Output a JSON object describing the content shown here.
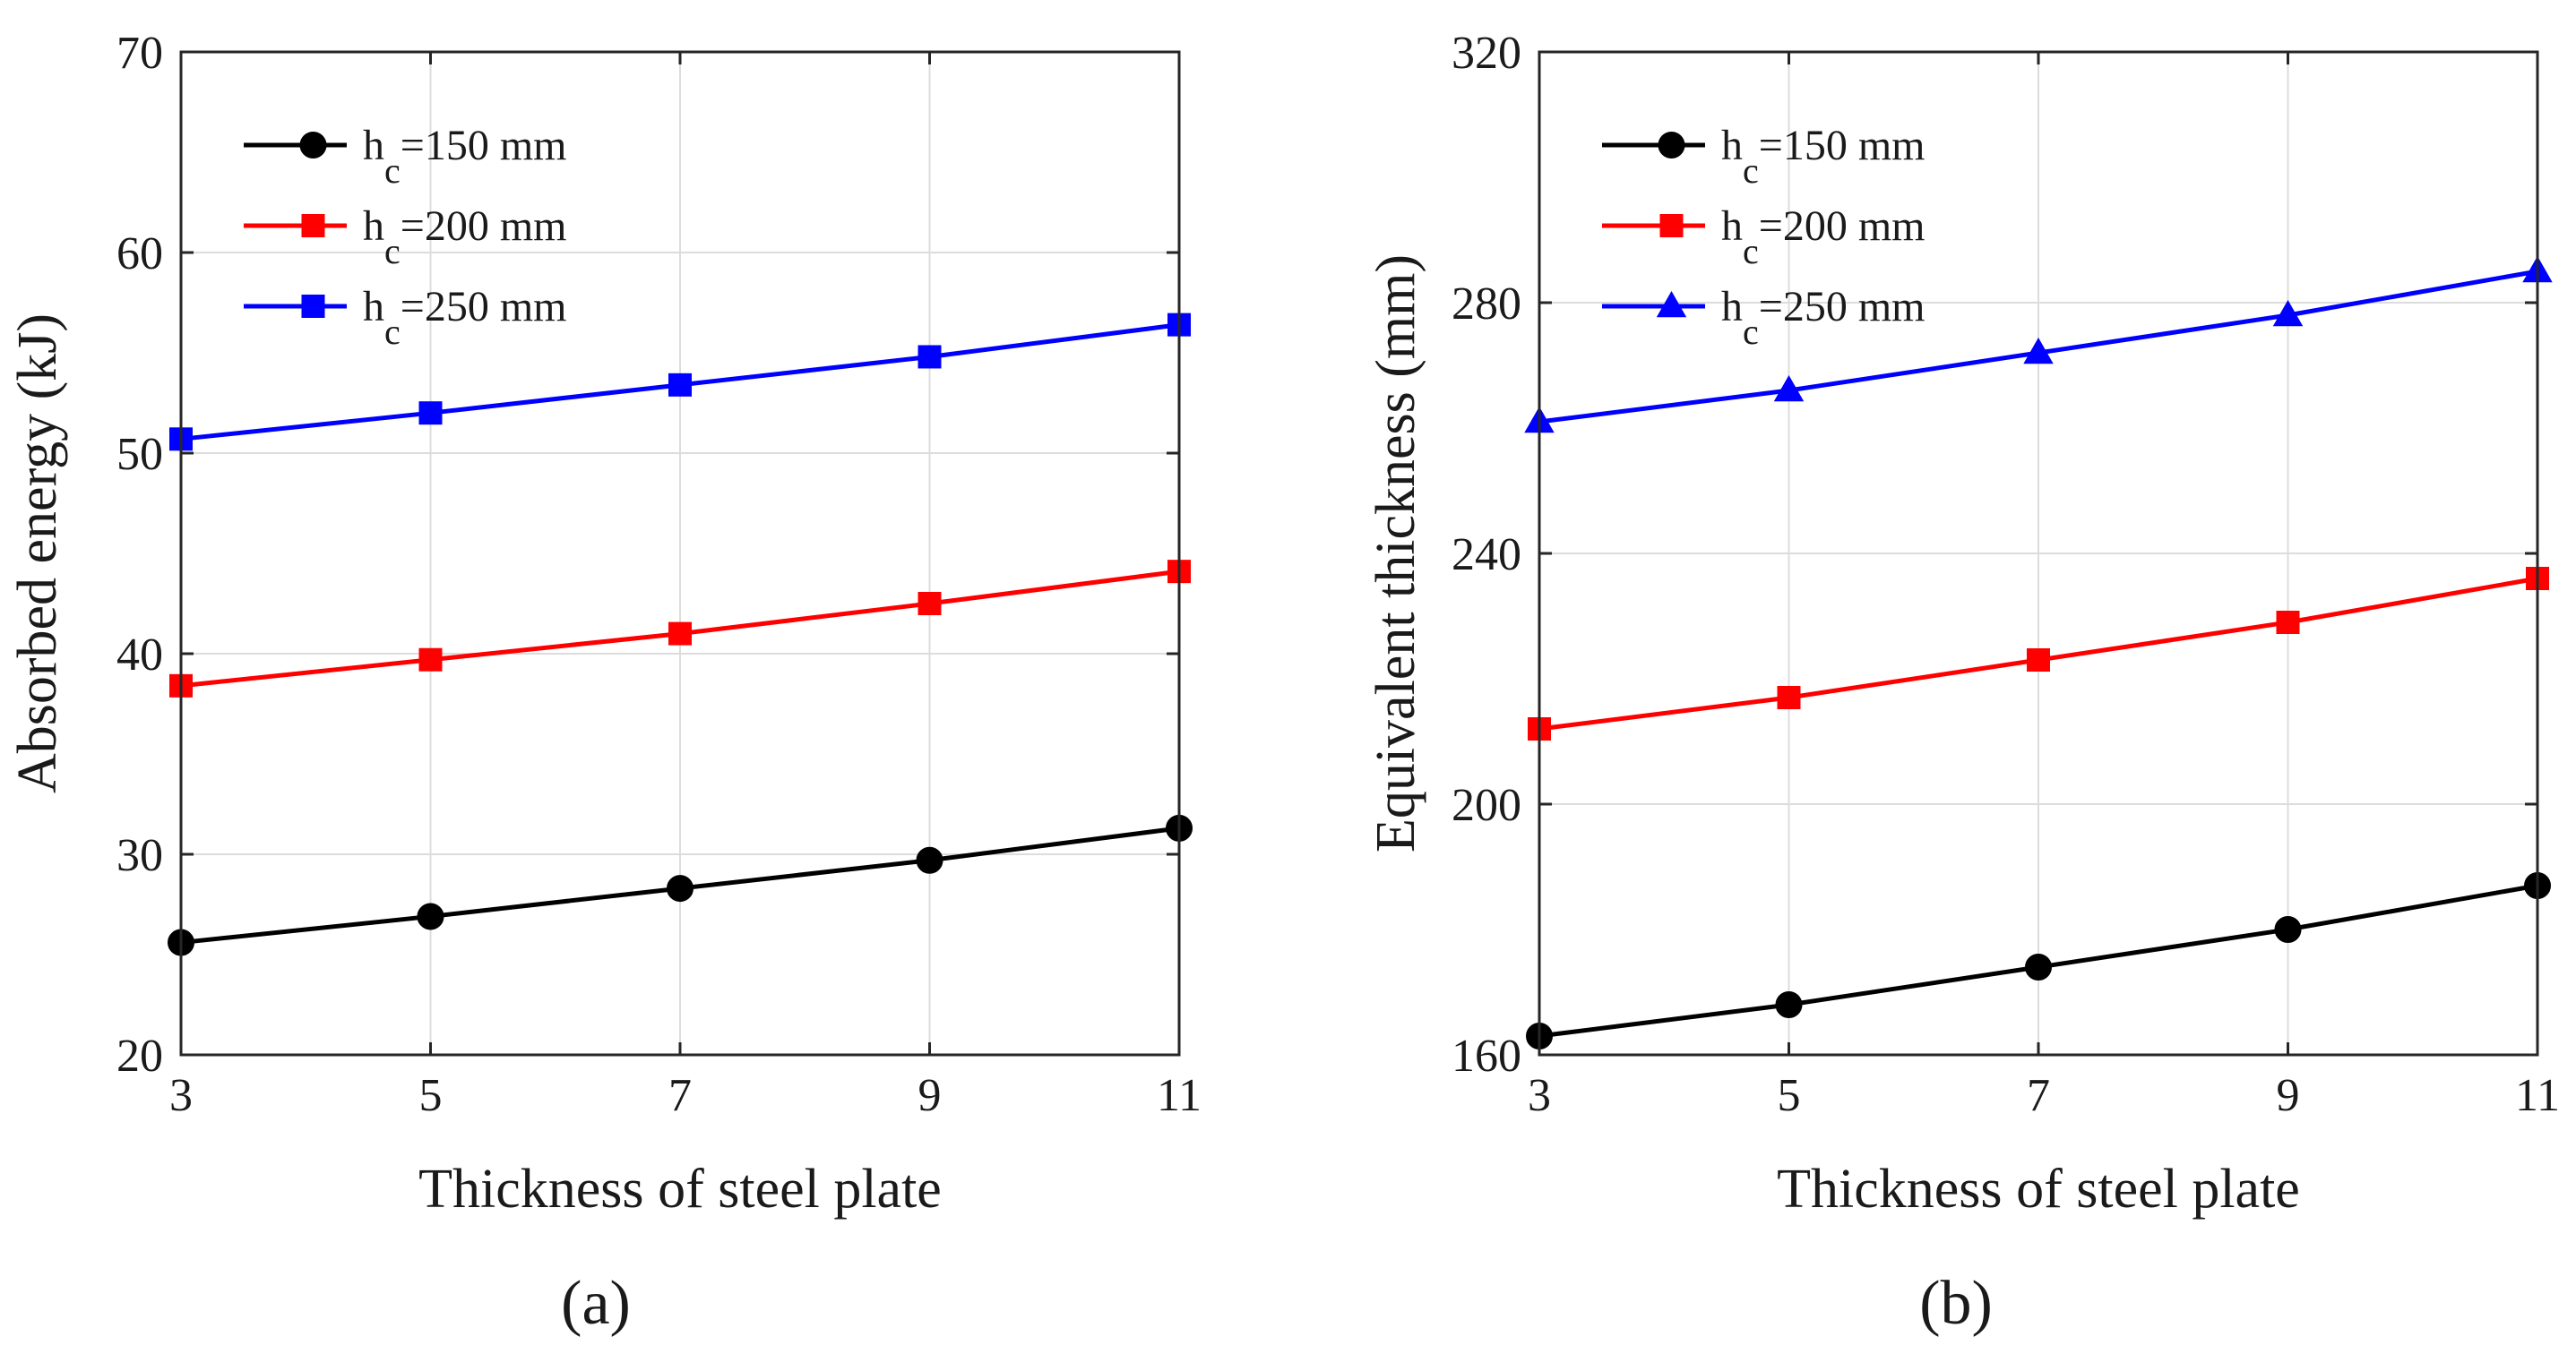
{
  "chart_data": [
    {
      "type": "line",
      "panel_label": "(a)",
      "xlabel": "Thickness of steel plate",
      "ylabel": "Absorbed energy (kJ)",
      "x": [
        3,
        5,
        7,
        9,
        11
      ],
      "xlim": [
        3,
        11
      ],
      "ylim": [
        20,
        70
      ],
      "xticks": [
        3,
        5,
        7,
        9,
        11
      ],
      "yticks": [
        20,
        30,
        40,
        50,
        60,
        70
      ],
      "grid": true,
      "legend_position": "top-left",
      "series": [
        {
          "name_main": "h",
          "name_sub": "c",
          "name_rest": "=150 mm",
          "color": "#000000",
          "marker": "circle",
          "values": [
            25.6,
            26.9,
            28.3,
            29.7,
            31.3
          ]
        },
        {
          "name_main": "h",
          "name_sub": "c",
          "name_rest": "=200 mm",
          "color": "#ff0000",
          "marker": "square",
          "values": [
            38.4,
            39.7,
            41.0,
            42.5,
            44.1
          ]
        },
        {
          "name_main": "h",
          "name_sub": "c",
          "name_rest": "=250 mm",
          "color": "#0000ff",
          "marker": "square",
          "values": [
            50.7,
            52.0,
            53.4,
            54.8,
            56.4
          ]
        }
      ]
    },
    {
      "type": "line",
      "panel_label": "(b)",
      "xlabel": "Thickness of steel plate",
      "ylabel": "Equivalent thickness (mm)",
      "x": [
        3,
        5,
        7,
        9,
        11
      ],
      "xlim": [
        3,
        11
      ],
      "ylim": [
        160,
        320
      ],
      "xticks": [
        3,
        5,
        7,
        9,
        11
      ],
      "yticks": [
        160,
        200,
        240,
        280,
        320
      ],
      "grid": true,
      "legend_position": "top-left",
      "series": [
        {
          "name_main": "h",
          "name_sub": "c",
          "name_rest": "=150 mm",
          "color": "#000000",
          "marker": "circle",
          "values": [
            163,
            168,
            174,
            180,
            187
          ]
        },
        {
          "name_main": "h",
          "name_sub": "c",
          "name_rest": "=200 mm",
          "color": "#ff0000",
          "marker": "square",
          "values": [
            212,
            217,
            223,
            229,
            236
          ]
        },
        {
          "name_main": "h",
          "name_sub": "c",
          "name_rest": "=250 mm",
          "color": "#0000ff",
          "marker": "triangle",
          "values": [
            261,
            266,
            272,
            278,
            285
          ]
        }
      ]
    }
  ]
}
